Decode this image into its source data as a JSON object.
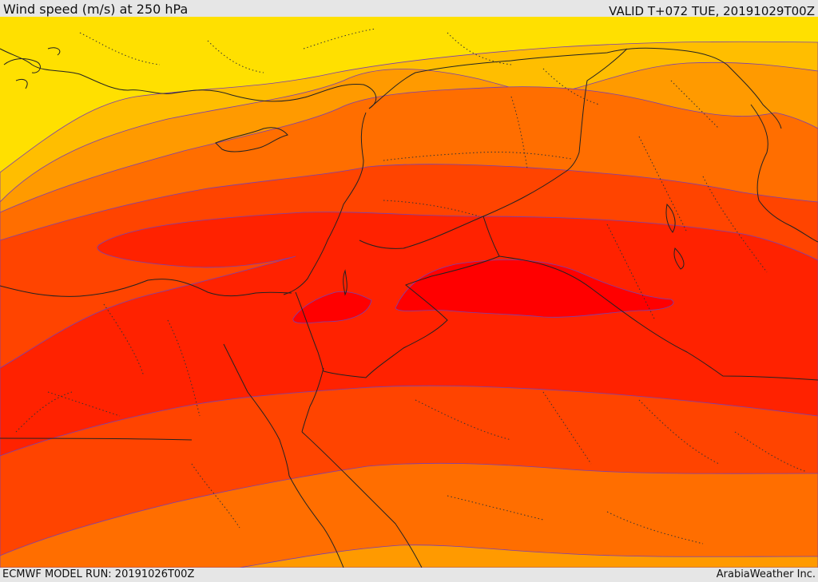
{
  "header": {
    "title": "Wind speed (m/s) at 250 hPa",
    "valid_time": "VALID T+072 TUE, 20191029T00Z"
  },
  "footer": {
    "model_run": "ECMWF MODEL RUN: 20191026T00Z",
    "credit": "ArabiaWeather Inc."
  },
  "map": {
    "field": "wind speed at 250 hPa",
    "colors": {
      "band_1": "#ffe000",
      "band_2": "#ffbe00",
      "band_3": "#ff9a00",
      "band_4": "#ff6e00",
      "band_5": "#ff4400",
      "band_6": "#ff2200",
      "band_7": "#ff0000",
      "contour_line": "#7a3fb0",
      "boundary_line": "#222222"
    },
    "legend_shown": false
  }
}
